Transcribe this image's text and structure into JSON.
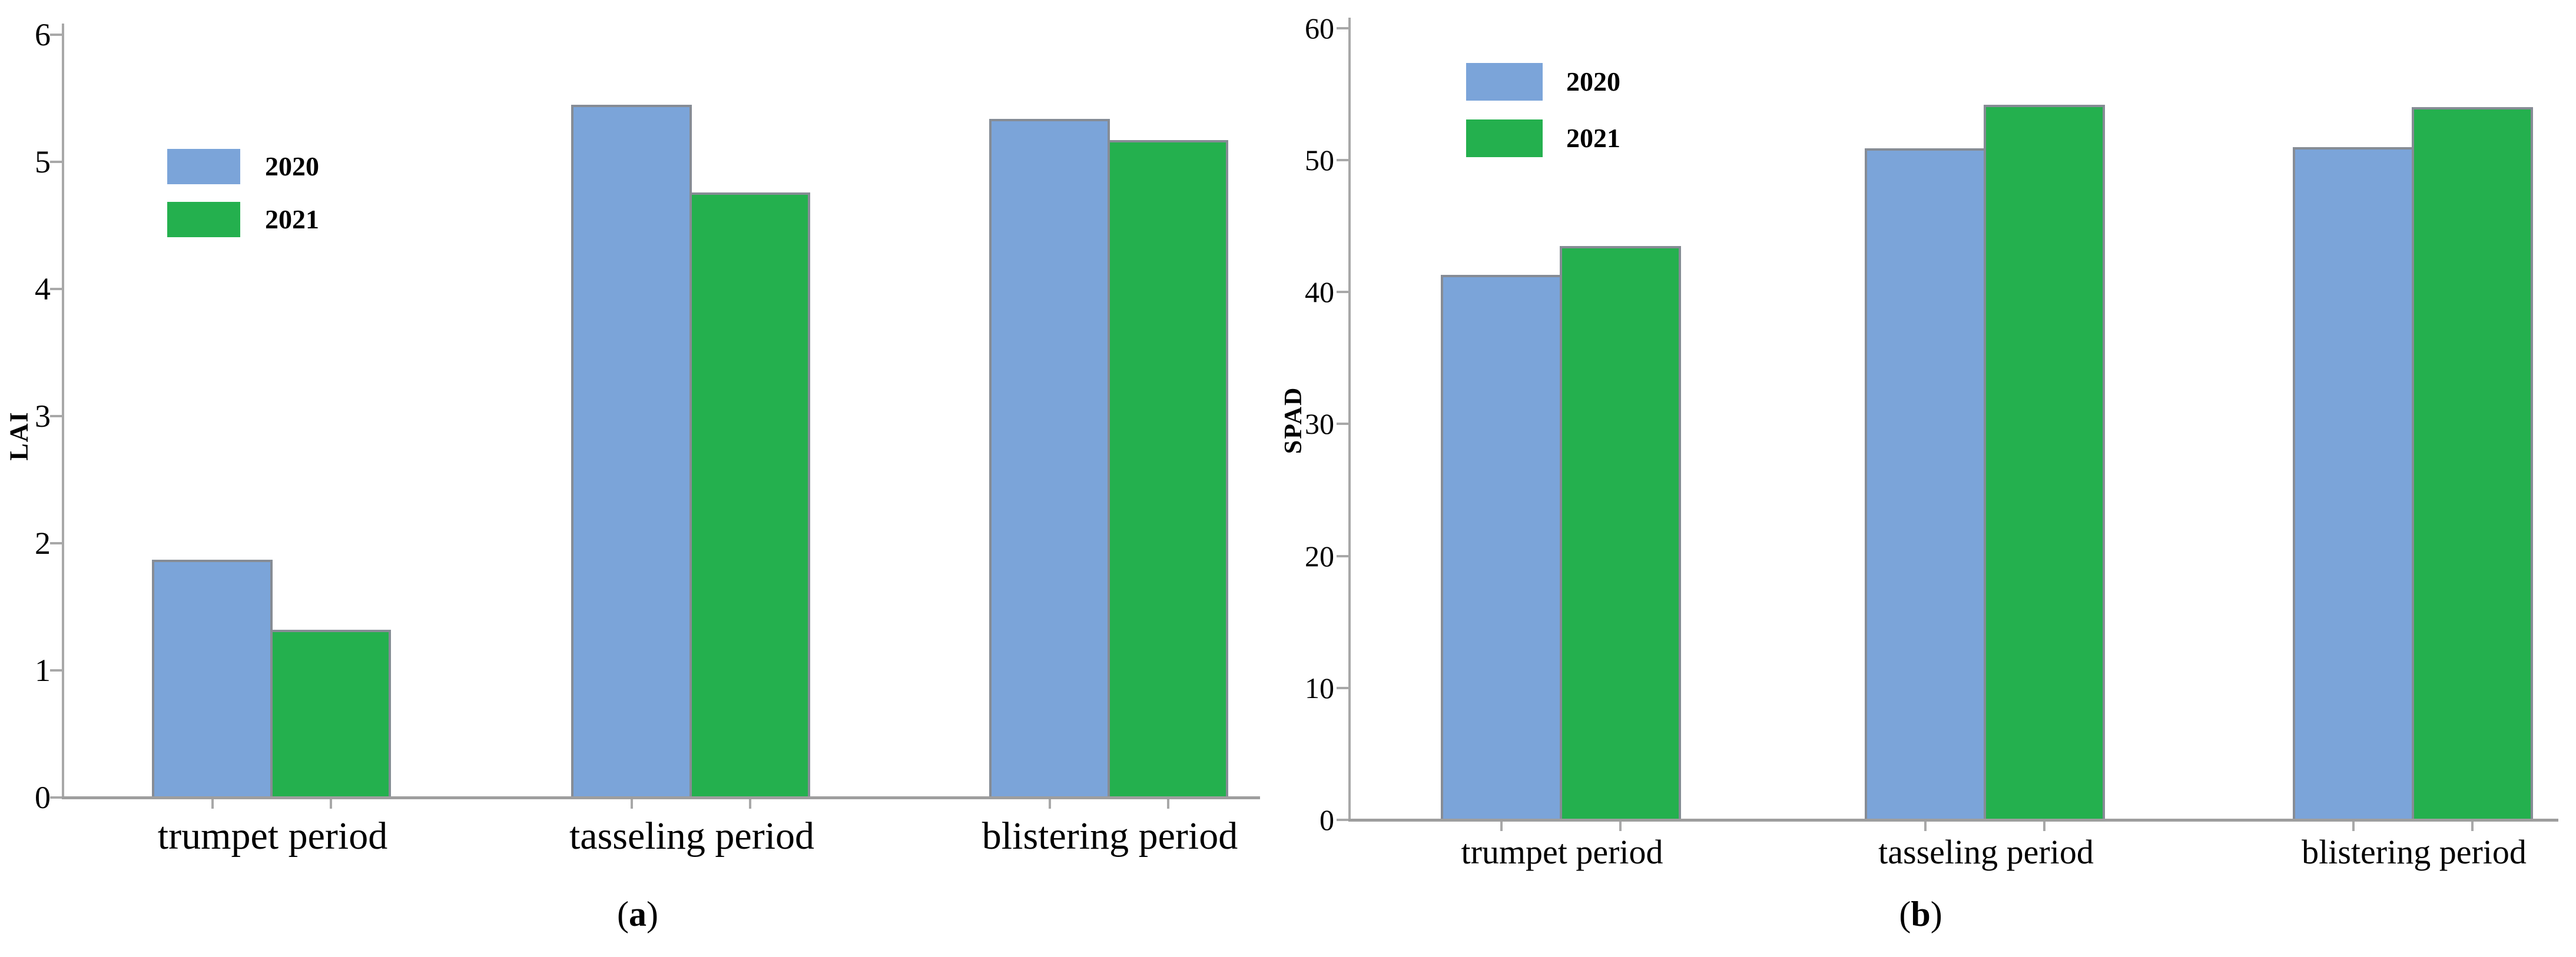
{
  "figure": {
    "background": "#ffffff",
    "colors": {
      "axis": "#a8a8a8",
      "bar_border": "#868c95",
      "text": "#000000",
      "series_2020": "#7ba4d9",
      "series_2021": "#24b04e"
    }
  },
  "chart_data": [
    {
      "id": "a",
      "type": "bar",
      "title": "",
      "xlabel": "",
      "ylabel": "LAI",
      "caption_open": "(",
      "caption_letter": "a",
      "caption_close": ")",
      "caption": "(a)",
      "categories": [
        "trumpet period",
        "tasseling period",
        "blistering period"
      ],
      "series": [
        {
          "name": "2020",
          "color": "#7ba4d9",
          "values": [
            1.87,
            5.45,
            5.34
          ]
        },
        {
          "name": "2021",
          "color": "#24b04e",
          "values": [
            1.32,
            4.76,
            5.17
          ]
        }
      ],
      "ylim": [
        0,
        6
      ],
      "ytick_step": 1,
      "ytick_labels": [
        "0",
        "1",
        "2",
        "3",
        "4",
        "5",
        "6"
      ],
      "grid": false,
      "legend_position": "upper-left"
    },
    {
      "id": "b",
      "type": "bar",
      "title": "",
      "xlabel": "",
      "ylabel": "SPAD",
      "caption_open": "(",
      "caption_letter": "b",
      "caption_close": ")",
      "caption": "(b)",
      "categories": [
        "trumpet period",
        "tasseling period",
        "blistering period"
      ],
      "series": [
        {
          "name": "2020",
          "color": "#7ba4d9",
          "values": [
            41.3,
            50.9,
            51.0
          ]
        },
        {
          "name": "2021",
          "color": "#24b04e",
          "values": [
            43.5,
            54.2,
            54.0
          ]
        }
      ],
      "ylim": [
        0,
        60
      ],
      "ytick_step": 10,
      "ytick_labels": [
        "0",
        "10",
        "20",
        "30",
        "40",
        "50",
        "60"
      ],
      "grid": false,
      "legend_position": "upper-left"
    }
  ]
}
